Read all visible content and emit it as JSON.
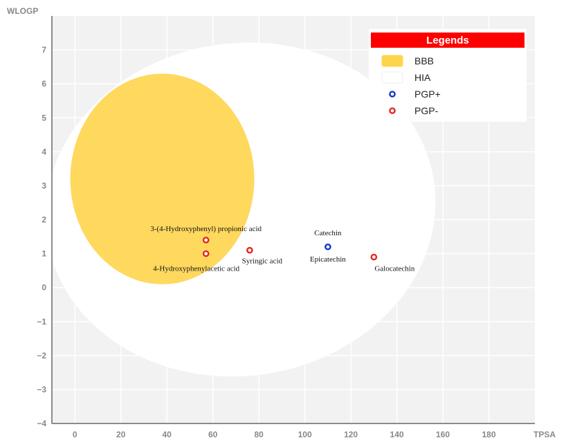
{
  "chart_data": {
    "type": "scatter",
    "xlabel": "TPSA",
    "ylabel": "WLOGP",
    "xlim": [
      -10,
      200
    ],
    "ylim": [
      -4,
      8
    ],
    "x_ticks": [
      0,
      20,
      40,
      60,
      80,
      100,
      120,
      140,
      160,
      180
    ],
    "y_ticks": [
      -4,
      -3,
      -2,
      -1,
      0,
      1,
      2,
      3,
      4,
      5,
      6,
      7
    ],
    "regions": [
      {
        "name": "BBB",
        "color": "#FFD44D",
        "cx": 38,
        "cy": 3.2,
        "rx": 40,
        "ry": 3.1,
        "rotation": 0
      },
      {
        "name": "HIA",
        "color": "#FFFFFF",
        "cx": 72,
        "cy": 2.3,
        "rx": 85,
        "ry": 4.9,
        "rotation": -8
      }
    ],
    "points": [
      {
        "label": "3-(4-Hydroxyphenyl) propionic acid",
        "x": 57,
        "y": 1.4,
        "class": "PGP-"
      },
      {
        "label": "4-Hydroxyphenylacetic acid",
        "x": 57,
        "y": 1.0,
        "class": "PGP-"
      },
      {
        "label": "Syringic acid",
        "x": 76,
        "y": 1.1,
        "class": "PGP-"
      },
      {
        "label": "Catechin",
        "x": 110,
        "y": 1.2,
        "class": "PGP+"
      },
      {
        "label": "Epicatechin",
        "x": 110,
        "y": 1.2,
        "class": "PGP+"
      },
      {
        "label": "Galocatechin",
        "x": 130,
        "y": 0.9,
        "class": "PGP-"
      }
    ],
    "legend": {
      "title": "Legends",
      "placement": "top-right",
      "items": [
        {
          "label": "BBB",
          "kind": "swatch",
          "color": "#FFD44D"
        },
        {
          "label": "HIA",
          "kind": "swatch",
          "color": "#FFFFFF"
        },
        {
          "label": "PGP+",
          "kind": "marker",
          "color": "#1133CC"
        },
        {
          "label": "PGP-",
          "kind": "marker",
          "color": "#E3261C"
        }
      ]
    },
    "colors": {
      "plot_bg": "#F2F2F2",
      "grid": "#FFFFFF",
      "legend_header": "#FF0000",
      "pgp_plus": "#1133CC",
      "pgp_minus": "#E3261C"
    }
  }
}
